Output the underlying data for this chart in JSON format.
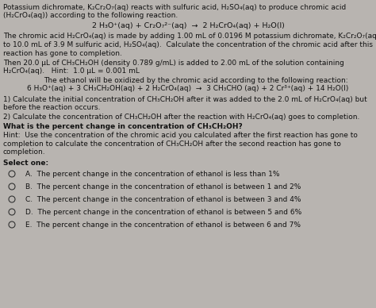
{
  "bg_color": "#b8b4b0",
  "text_color": "#000000",
  "figsize": [
    4.74,
    3.88
  ],
  "dpi": 100,
  "title_line1": "Potassium dichromate, K₂Cr₂O₇(aq) reacts with sulfuric acid, H₂SO₄(aq) to produce chromic acid",
  "title_line2": "(H₂CrO₄(aq)) according to the following reaction.",
  "equation1": "2 H₃O⁺(aq) + Cr₂O₇²⁻(aq)  →  2 H₂CrO₄(aq) + H₂O(l)",
  "para1_line1": "The chromic acid H₂CrO₄(aq) is made by adding 1.00 mL of 0.0196 M potassium dichromate, K₂Cr₂O₇(aq),",
  "para1_line2": "to 10.0 mL of 3.9 M sulfuric acid, H₂SO₄(aq).  Calculate the concentration of the chromic acid after this",
  "para1_line3": "reaction has gone to completion.",
  "para2_line1": "Then 20.0 μL of CH₃CH₂OH (density 0.789 g/mL) is added to 2.00 mL of the solution containing",
  "para2_line2": "H₂CrO₄(aq).   Hint:  1.0 μL = 0.001 mL",
  "indented1": "The ethanol will be oxidized by the chromic acid according to the following reaction:",
  "equation2": "6 H₃O⁺(aq) + 3 CH₃CH₂OH(aq) + 2 H₂CrO₄(aq)  →  3 CH₃CHO (aq) + 2 Cr³⁺(aq) + 14 H₂O(l)",
  "q1": "1) Calculate the initial concentration of CH₃CH₂OH after it was added to the 2.0 mL of H₂CrO₄(aq) but",
  "q1b": "before the reaction occurs.",
  "q2": "2) Calculate the concentration of CH₃CH₂OH after the reaction with H₂CrO₄(aq) goes to completion.",
  "q3": "What is the percent change in concentration of CH₃CH₂OH?",
  "hint2_line1": "Hint:  Use the concentration of the chromic acid you calculated after the first reaction has gone to",
  "hint2_line2": "completion to calculate the concentration of CH₃CH₂OH after the second reaction has gone to",
  "hint2_line3": "completion.",
  "select": "Select one:",
  "options": [
    "A.  The percent change in the concentration of ethanol is less than 1%",
    "B.  The percent change in the concentration of ethanol is between 1 and 2%",
    "C.  The percent change in the concentration of ethanol is between 3 and 4%",
    "D.  The percent change in the concentration of ethanol is between 5 and 6%",
    "E.  The percent change in the concentration of ethanol is between 6 and 7%"
  ]
}
